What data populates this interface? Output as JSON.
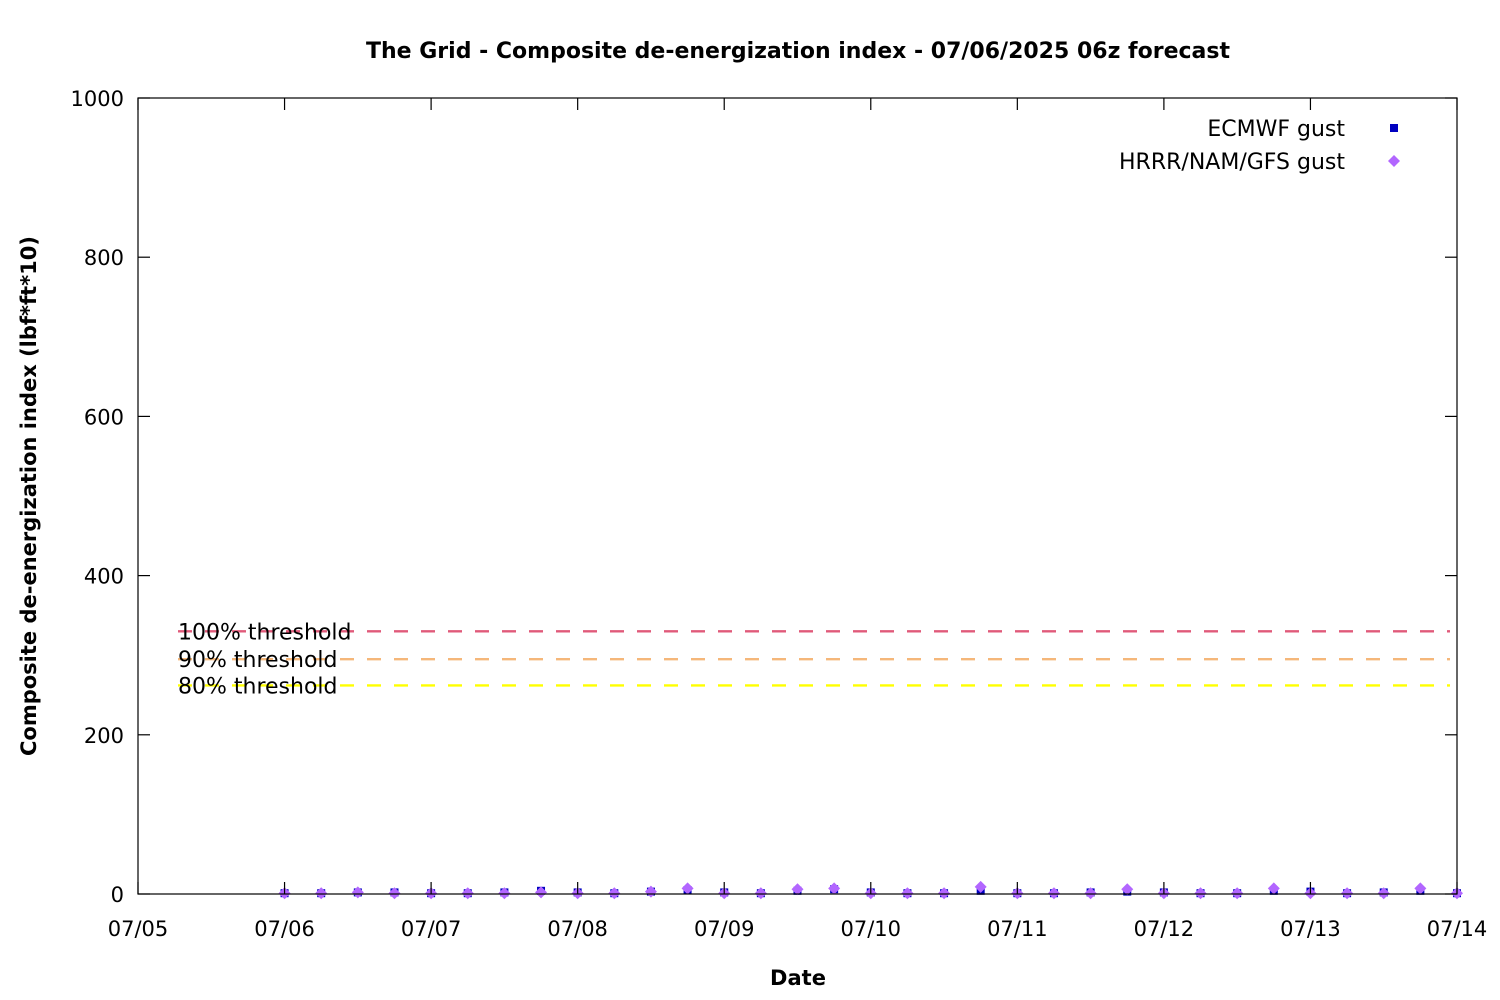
{
  "chart_data": {
    "type": "scatter",
    "title": "The Grid - Composite de-energization index - 07/06/2025 06z forecast",
    "xlabel": "Date",
    "ylabel": "Composite de-energization index (lbf*ft*10)",
    "ylim": [
      0,
      1000
    ],
    "xlim": [
      "2025-07-05 00:00",
      "2025-07-14 00:00"
    ],
    "y_ticks": [
      0,
      200,
      400,
      600,
      800,
      1000
    ],
    "x_ticks": [
      "07/05",
      "07/06",
      "07/07",
      "07/08",
      "07/09",
      "07/10",
      "07/11",
      "07/12",
      "07/13",
      "07/14"
    ],
    "grid": false,
    "legend_position": "top-right",
    "thresholds": [
      {
        "label": "100% threshold",
        "value": 330,
        "color": "#e05a7a"
      },
      {
        "label": "90% threshold",
        "value": 295,
        "color": "#f5b77a"
      },
      {
        "label": "80% threshold",
        "value": 262,
        "color": "#ffff00"
      }
    ],
    "series": [
      {
        "name": "ECMWF gust",
        "color": "#0000c0",
        "marker": "square",
        "points": [
          [
            "2025-07-06 00:00",
            1
          ],
          [
            "2025-07-06 06:00",
            1
          ],
          [
            "2025-07-06 12:00",
            2
          ],
          [
            "2025-07-06 18:00",
            2
          ],
          [
            "2025-07-07 00:00",
            1
          ],
          [
            "2025-07-07 06:00",
            1
          ],
          [
            "2025-07-07 12:00",
            2
          ],
          [
            "2025-07-07 18:00",
            4
          ],
          [
            "2025-07-08 00:00",
            2
          ],
          [
            "2025-07-08 06:00",
            1
          ],
          [
            "2025-07-08 12:00",
            3
          ],
          [
            "2025-07-08 18:00",
            5
          ],
          [
            "2025-07-09 00:00",
            2
          ],
          [
            "2025-07-09 06:00",
            1
          ],
          [
            "2025-07-09 12:00",
            4
          ],
          [
            "2025-07-09 18:00",
            6
          ],
          [
            "2025-07-10 00:00",
            2
          ],
          [
            "2025-07-10 06:00",
            1
          ],
          [
            "2025-07-10 12:00",
            1
          ],
          [
            "2025-07-10 18:00",
            4
          ],
          [
            "2025-07-11 00:00",
            1
          ],
          [
            "2025-07-11 06:00",
            1
          ],
          [
            "2025-07-11 12:00",
            2
          ],
          [
            "2025-07-11 18:00",
            3
          ],
          [
            "2025-07-12 00:00",
            2
          ],
          [
            "2025-07-12 06:00",
            1
          ],
          [
            "2025-07-12 12:00",
            1
          ],
          [
            "2025-07-12 18:00",
            4
          ],
          [
            "2025-07-13 00:00",
            3
          ],
          [
            "2025-07-13 06:00",
            1
          ],
          [
            "2025-07-13 12:00",
            2
          ],
          [
            "2025-07-13 18:00",
            4
          ],
          [
            "2025-07-14 00:00",
            1
          ]
        ]
      },
      {
        "name": "HRRR/NAM/GFS gust",
        "color": "#b266ff",
        "marker": "diamond",
        "points": [
          [
            "2025-07-06 00:00",
            1
          ],
          [
            "2025-07-06 06:00",
            1
          ],
          [
            "2025-07-06 12:00",
            2
          ],
          [
            "2025-07-06 18:00",
            1
          ],
          [
            "2025-07-07 00:00",
            1
          ],
          [
            "2025-07-07 06:00",
            1
          ],
          [
            "2025-07-07 12:00",
            1
          ],
          [
            "2025-07-07 18:00",
            2
          ],
          [
            "2025-07-08 00:00",
            1
          ],
          [
            "2025-07-08 06:00",
            1
          ],
          [
            "2025-07-08 12:00",
            3
          ],
          [
            "2025-07-08 18:00",
            7
          ],
          [
            "2025-07-09 00:00",
            1
          ],
          [
            "2025-07-09 06:00",
            1
          ],
          [
            "2025-07-09 12:00",
            6
          ],
          [
            "2025-07-09 18:00",
            7
          ],
          [
            "2025-07-10 00:00",
            1
          ],
          [
            "2025-07-10 06:00",
            1
          ],
          [
            "2025-07-10 12:00",
            1
          ],
          [
            "2025-07-10 18:00",
            9
          ],
          [
            "2025-07-11 00:00",
            1
          ],
          [
            "2025-07-11 06:00",
            1
          ],
          [
            "2025-07-11 12:00",
            1
          ],
          [
            "2025-07-11 18:00",
            6
          ],
          [
            "2025-07-12 00:00",
            1
          ],
          [
            "2025-07-12 06:00",
            1
          ],
          [
            "2025-07-12 12:00",
            1
          ],
          [
            "2025-07-12 18:00",
            7
          ],
          [
            "2025-07-13 00:00",
            1
          ],
          [
            "2025-07-13 06:00",
            1
          ],
          [
            "2025-07-13 12:00",
            1
          ],
          [
            "2025-07-13 18:00",
            7
          ],
          [
            "2025-07-14 00:00",
            1
          ]
        ]
      }
    ]
  }
}
